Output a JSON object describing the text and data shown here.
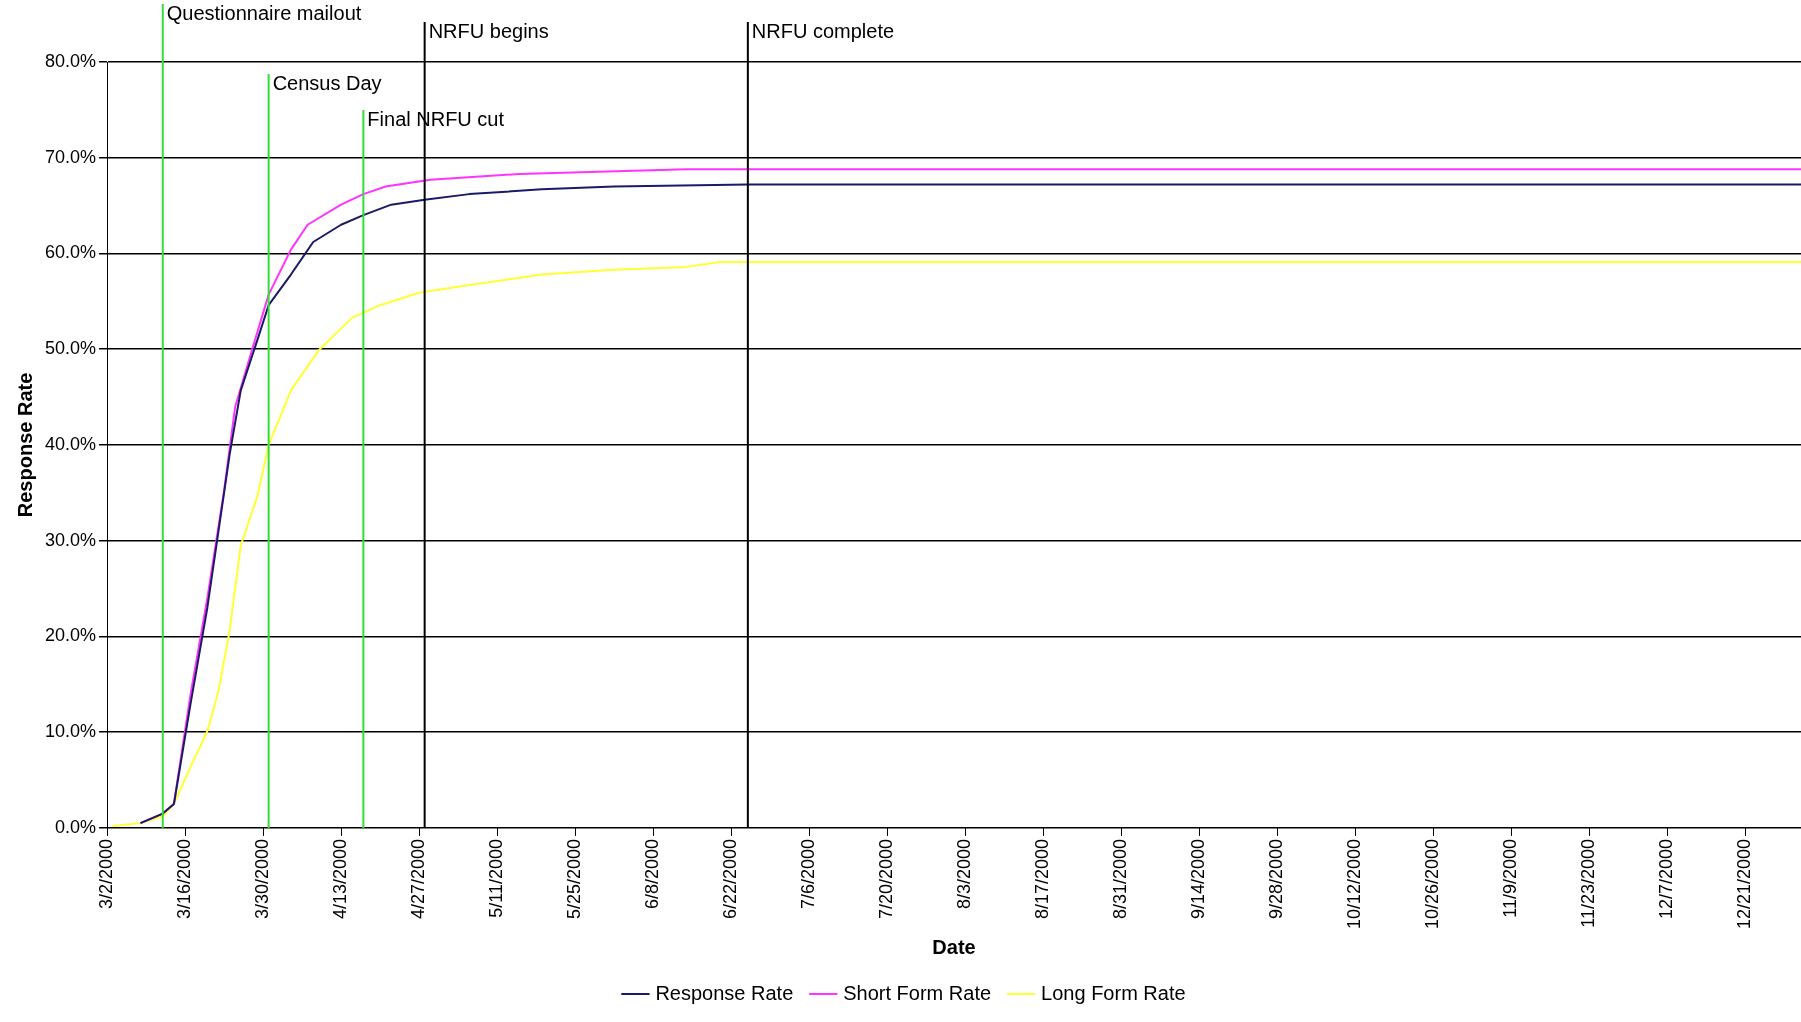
{
  "chart_data": {
    "type": "line",
    "xlabel": "Date",
    "ylabel": "Response Rate",
    "xlim": [
      "2000-03-02",
      "2000-12-31"
    ],
    "xticks": [
      {
        "value": "2000-03-02",
        "label": "3/2/2000"
      },
      {
        "value": "2000-03-16",
        "label": "3/16/2000"
      },
      {
        "value": "2000-03-30",
        "label": "3/30/2000"
      },
      {
        "value": "2000-04-13",
        "label": "4/13/2000"
      },
      {
        "value": "2000-04-27",
        "label": "4/27/2000"
      },
      {
        "value": "2000-05-11",
        "label": "5/11/2000"
      },
      {
        "value": "2000-05-25",
        "label": "5/25/2000"
      },
      {
        "value": "2000-06-08",
        "label": "6/8/2000"
      },
      {
        "value": "2000-06-22",
        "label": "6/22/2000"
      },
      {
        "value": "2000-07-06",
        "label": "7/6/2000"
      },
      {
        "value": "2000-07-20",
        "label": "7/20/2000"
      },
      {
        "value": "2000-08-03",
        "label": "8/3/2000"
      },
      {
        "value": "2000-08-17",
        "label": "8/17/2000"
      },
      {
        "value": "2000-08-31",
        "label": "8/31/2000"
      },
      {
        "value": "2000-09-14",
        "label": "9/14/2000"
      },
      {
        "value": "2000-09-28",
        "label": "9/28/2000"
      },
      {
        "value": "2000-10-12",
        "label": "10/12/2000"
      },
      {
        "value": "2000-10-26",
        "label": "10/26/2000"
      },
      {
        "value": "2000-11-09",
        "label": "11/9/2000"
      },
      {
        "value": "2000-11-23",
        "label": "11/23/2000"
      },
      {
        "value": "2000-12-07",
        "label": "12/7/2000"
      },
      {
        "value": "2000-12-21",
        "label": "12/21/2000"
      }
    ],
    "ylim": [
      0,
      80
    ],
    "yticks": [
      {
        "value": 0,
        "label": "0.0%"
      },
      {
        "value": 10,
        "label": "10.0%"
      },
      {
        "value": 20,
        "label": "20.0%"
      },
      {
        "value": 30,
        "label": "30.0%"
      },
      {
        "value": 40,
        "label": "40.0%"
      },
      {
        "value": 50,
        "label": "50.0%"
      },
      {
        "value": 60,
        "label": "60.0%"
      },
      {
        "value": 70,
        "label": "70.0%"
      },
      {
        "value": 80,
        "label": "80.0%"
      }
    ],
    "grid": "y",
    "legend": "bottom",
    "marker": "none",
    "line_style": "solid",
    "series": [
      {
        "name": "Response Rate",
        "color": "#1a1a66",
        "x": [
          "2000-03-08",
          "2000-03-12",
          "2000-03-14",
          "2000-03-17",
          "2000-03-20",
          "2000-03-22",
          "2000-03-24",
          "2000-03-26",
          "2000-03-29",
          "2000-03-31",
          "2000-04-04",
          "2000-04-08",
          "2000-04-13",
          "2000-04-17",
          "2000-04-22",
          "2000-04-28",
          "2000-05-06",
          "2000-05-19",
          "2000-06-01",
          "2000-06-25",
          "2000-12-31"
        ],
        "values": [
          0.5,
          1.5,
          2.5,
          13,
          23,
          31,
          39,
          45.7,
          51,
          54.6,
          57.8,
          61.2,
          63,
          64,
          65.1,
          65.6,
          66.2,
          66.7,
          67,
          67.2,
          67.2
        ]
      },
      {
        "name": "Short Form Rate",
        "color": "#ff33ff",
        "x": [
          "2000-03-08",
          "2000-03-12",
          "2000-03-14",
          "2000-03-17",
          "2000-03-20",
          "2000-03-23",
          "2000-03-25",
          "2000-03-28",
          "2000-03-31",
          "2000-04-04",
          "2000-04-07",
          "2000-04-13",
          "2000-04-17",
          "2000-04-21",
          "2000-04-29",
          "2000-05-15",
          "2000-06-14",
          "2000-12-31"
        ],
        "values": [
          0.5,
          1.5,
          2.5,
          14,
          24,
          35.2,
          44,
          49.9,
          55.7,
          60.4,
          63,
          65.1,
          66.2,
          67,
          67.7,
          68.3,
          68.8,
          68.8
        ]
      },
      {
        "name": "Long Form Rate",
        "color": "#ffff33",
        "x": [
          "2000-03-03",
          "2000-03-08",
          "2000-03-12",
          "2000-03-14",
          "2000-03-17",
          "2000-03-20",
          "2000-03-22",
          "2000-03-24",
          "2000-03-26",
          "2000-03-29",
          "2000-03-31",
          "2000-04-04",
          "2000-04-09",
          "2000-04-15",
          "2000-04-20",
          "2000-04-27",
          "2000-05-06",
          "2000-05-19",
          "2000-06-01",
          "2000-06-14",
          "2000-06-20",
          "2000-12-31"
        ],
        "values": [
          0.2,
          0.5,
          1.2,
          2.5,
          6.4,
          10.1,
          14.3,
          20.6,
          29.5,
          34.7,
          40,
          45.7,
          49.9,
          53.3,
          54.6,
          55.9,
          56.7,
          57.8,
          58.3,
          58.6,
          59.1,
          59.1
        ]
      }
    ],
    "ref_lines": [
      {
        "axis": "x",
        "value": "2000-03-12",
        "label": "Questionnaire mailout",
        "color": "#33dd33"
      },
      {
        "axis": "x",
        "value": "2000-03-31",
        "label": "Census Day",
        "color": "#33dd33"
      },
      {
        "axis": "x",
        "value": "2000-04-17",
        "label": "Final NRFU cut",
        "color": "#33dd33"
      },
      {
        "axis": "x",
        "value": "2000-04-28",
        "label": "NRFU begins",
        "color": "#000000"
      },
      {
        "axis": "x",
        "value": "2000-06-25",
        "label": "NRFU complete",
        "color": "#000000"
      }
    ]
  }
}
